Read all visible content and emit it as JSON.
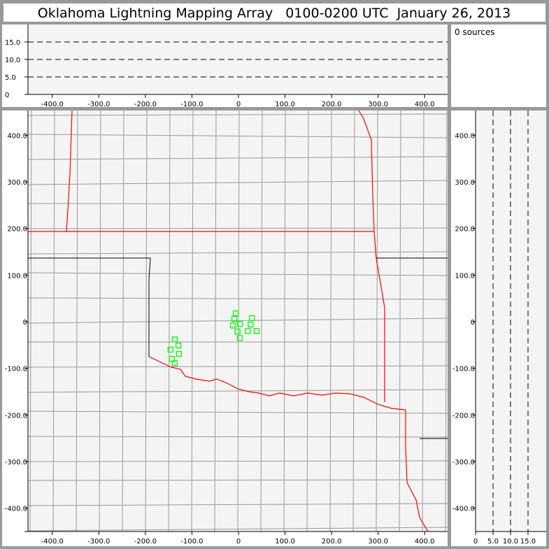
{
  "title": "Oklahoma Lightning Mapping Array   0100-0200 UTC  January 26, 2013",
  "source_count_label": "0 sources",
  "colors": {
    "border_frame": "#999999",
    "plot_bg": "#f4f4f4",
    "state_border": "#ff0000",
    "county": "#999999",
    "source": "#00ff00"
  },
  "chart_data": [
    {
      "type": "scatter",
      "panel": "altitude-vs-east-west",
      "x_ticks": [
        "-400.0",
        "-300.0",
        "-200.0",
        "-100.0",
        "0",
        "100.0",
        "200.0",
        "300.0",
        "400.0"
      ],
      "x_tick_values": [
        -400,
        -300,
        -200,
        -100,
        0,
        100,
        200,
        300,
        400
      ],
      "y_ticks": [
        "0",
        "5.0",
        "10.0",
        "15.0"
      ],
      "y_tick_values": [
        0,
        5,
        10,
        15
      ],
      "xlim": [
        -450,
        450
      ],
      "ylim": [
        0,
        20
      ],
      "dashed_reference_lines": [
        5,
        10,
        15
      ],
      "points": []
    },
    {
      "type": "scatter",
      "panel": "plan-view-map",
      "x_ticks": [
        "-400.0",
        "-300.0",
        "-200.0",
        "-100.0",
        "0",
        "100.0",
        "200.0",
        "300.0",
        "400.0"
      ],
      "x_tick_values": [
        -400,
        -300,
        -200,
        -100,
        0,
        100,
        200,
        300,
        400
      ],
      "y_ticks": [
        "400.0",
        "300.0",
        "200.0",
        "100.0",
        "0",
        "-100.0",
        "-200.0",
        "-300.0",
        "-400.0"
      ],
      "y_tick_values": [
        400,
        300,
        200,
        100,
        0,
        -100,
        -200,
        -300,
        -400
      ],
      "xlim": [
        -450,
        450
      ],
      "ylim": [
        -450,
        450
      ],
      "points": [
        {
          "x": -6,
          "y": 18
        },
        {
          "x": -9,
          "y": 6
        },
        {
          "x": 29,
          "y": 8
        },
        {
          "x": -12,
          "y": -8
        },
        {
          "x": 3,
          "y": -5
        },
        {
          "x": 26,
          "y": -6
        },
        {
          "x": -2,
          "y": -21
        },
        {
          "x": 20,
          "y": -20
        },
        {
          "x": 39,
          "y": -20
        },
        {
          "x": 3,
          "y": -35
        },
        {
          "x": -137,
          "y": -38
        },
        {
          "x": -129,
          "y": -51
        },
        {
          "x": -146,
          "y": -60
        },
        {
          "x": -128,
          "y": -69
        },
        {
          "x": -143,
          "y": -80
        },
        {
          "x": -137,
          "y": -89
        }
      ]
    },
    {
      "type": "scatter",
      "panel": "north-south-vs-altitude",
      "x_ticks": [
        "0",
        "5.0",
        "10.0",
        "15.0"
      ],
      "x_tick_values": [
        0,
        5,
        10,
        15
      ],
      "y_ticks": [
        "400.0",
        "300.0",
        "200.0",
        "100.0",
        "0",
        "-100.0",
        "-200.0",
        "-300.0",
        "-400.0"
      ],
      "y_tick_values": [
        400,
        300,
        200,
        100,
        0,
        -100,
        -200,
        -300,
        -400
      ],
      "xlim": [
        0,
        20
      ],
      "ylim": [
        -450,
        450
      ],
      "dashed_reference_lines": [
        5,
        10,
        15
      ],
      "points": []
    }
  ]
}
